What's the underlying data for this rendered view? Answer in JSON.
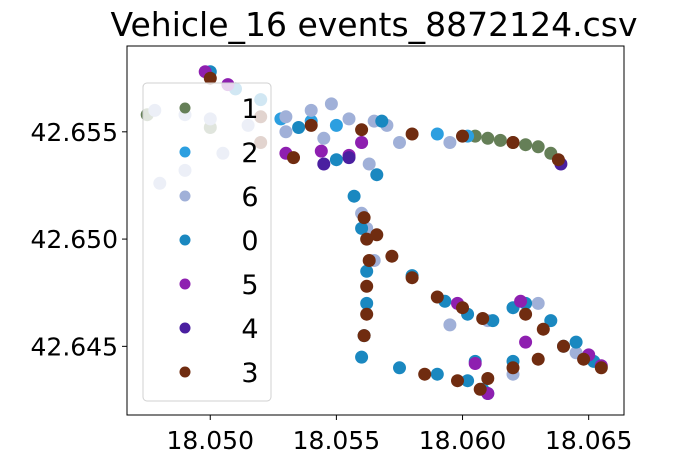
{
  "chart_data": {
    "type": "scatter",
    "title": "Vehicle_16 events_8872124.csv",
    "xlabel": "",
    "ylabel": "",
    "xlim": [
      18.0467,
      18.0664
    ],
    "ylim": [
      42.6418,
      42.659
    ],
    "x_ticks": [
      18.05,
      18.055,
      18.06,
      18.065
    ],
    "x_tick_labels": [
      "18.050",
      "18.055",
      "18.060",
      "18.065"
    ],
    "y_ticks": [
      42.645,
      42.65,
      42.655
    ],
    "y_tick_labels": [
      "42.645",
      "42.650",
      "42.655"
    ],
    "grid": false,
    "legend_position": "upper-left",
    "trajectory_color": "#e07bb8",
    "series": [
      {
        "name": "1",
        "color": "#657f57",
        "points": [
          [
            18.0605,
            42.6548
          ],
          [
            18.061,
            42.6547
          ],
          [
            18.0615,
            42.6546
          ],
          [
            18.062,
            42.6545
          ],
          [
            18.0625,
            42.6544
          ],
          [
            18.063,
            42.6543
          ],
          [
            18.0635,
            42.654
          ],
          [
            18.0475,
            42.6558
          ],
          [
            18.05,
            42.6552
          ]
        ]
      },
      {
        "name": "2",
        "color": "#2c9fe0",
        "points": [
          [
            18.0528,
            42.6556
          ],
          [
            18.054,
            42.6555
          ],
          [
            18.055,
            42.6553
          ],
          [
            18.059,
            42.6549
          ],
          [
            18.0602,
            42.6548
          ]
        ]
      },
      {
        "name": "6",
        "color": "#a0b0d8",
        "points": [
          [
            18.0478,
            42.656
          ],
          [
            18.049,
            42.6558
          ],
          [
            18.05,
            42.6556
          ],
          [
            18.0515,
            42.6553
          ],
          [
            18.053,
            42.655
          ],
          [
            18.0545,
            42.6547
          ],
          [
            18.056,
            42.6545
          ],
          [
            18.0575,
            42.6545
          ],
          [
            18.0595,
            42.6545
          ],
          [
            18.053,
            42.6557
          ],
          [
            18.054,
            42.656
          ],
          [
            18.0548,
            42.6563
          ],
          [
            18.0555,
            42.6556
          ],
          [
            18.0565,
            42.6555
          ],
          [
            18.057,
            42.6553
          ],
          [
            18.0563,
            42.6535
          ],
          [
            18.056,
            42.6512
          ],
          [
            18.0562,
            42.6505
          ],
          [
            18.0505,
            42.654
          ],
          [
            18.049,
            42.6532
          ],
          [
            18.048,
            42.6526
          ],
          [
            18.0565,
            42.649
          ],
          [
            18.0595,
            42.646
          ],
          [
            18.061,
            42.6462
          ],
          [
            18.063,
            42.647
          ],
          [
            18.0645,
            42.6447
          ],
          [
            18.062,
            42.6437
          ]
        ]
      },
      {
        "name": "0",
        "color": "#1a88c0",
        "points": [
          [
            18.05,
            42.6578
          ],
          [
            18.051,
            42.657
          ],
          [
            18.052,
            42.6565
          ],
          [
            18.0535,
            42.6552
          ],
          [
            18.055,
            42.6537
          ],
          [
            18.0557,
            42.652
          ],
          [
            18.056,
            42.6505
          ],
          [
            18.0562,
            42.6485
          ],
          [
            18.0562,
            42.647
          ],
          [
            18.0561,
            42.6455
          ],
          [
            18.056,
            42.6445
          ],
          [
            18.0575,
            42.644
          ],
          [
            18.059,
            42.6437
          ],
          [
            18.0602,
            42.6434
          ],
          [
            18.0608,
            42.643
          ],
          [
            18.061,
            42.6428
          ],
          [
            18.0605,
            42.6443
          ],
          [
            18.062,
            42.6443
          ],
          [
            18.064,
            42.645
          ],
          [
            18.0652,
            42.6443
          ],
          [
            18.058,
            42.6483
          ],
          [
            18.0593,
            42.6471
          ],
          [
            18.0602,
            42.6465
          ],
          [
            18.0612,
            42.6462
          ],
          [
            18.062,
            42.6468
          ],
          [
            18.0625,
            42.647
          ],
          [
            18.0635,
            42.6462
          ],
          [
            18.0645,
            42.6452
          ],
          [
            18.0568,
            42.6555
          ],
          [
            18.0566,
            42.653
          ]
        ]
      },
      {
        "name": "5",
        "color": "#8e1fb0",
        "points": [
          [
            18.0498,
            42.6578
          ],
          [
            18.0507,
            42.6572
          ],
          [
            18.0544,
            42.6541
          ],
          [
            18.0555,
            42.6539
          ],
          [
            18.056,
            42.6545
          ],
          [
            18.0598,
            42.647
          ],
          [
            18.0625,
            42.6452
          ],
          [
            18.065,
            42.6446
          ],
          [
            18.0655,
            42.6441
          ],
          [
            18.0605,
            42.6442
          ],
          [
            18.061,
            42.6428
          ],
          [
            18.0623,
            42.6471
          ],
          [
            18.053,
            42.654
          ]
        ]
      },
      {
        "name": "4",
        "color": "#4a1fa0",
        "points": [
          [
            18.0639,
            42.6535
          ],
          [
            18.0545,
            42.6535
          ],
          [
            18.0555,
            42.6538
          ]
        ]
      },
      {
        "name": "3",
        "color": "#702c10",
        "points": [
          [
            18.05,
            42.6575
          ],
          [
            18.052,
            42.6557
          ],
          [
            18.054,
            42.6553
          ],
          [
            18.056,
            42.6551
          ],
          [
            18.058,
            42.6549
          ],
          [
            18.06,
            42.6548
          ],
          [
            18.062,
            42.6545
          ],
          [
            18.0638,
            42.6537
          ],
          [
            18.0561,
            42.651
          ],
          [
            18.0562,
            42.65
          ],
          [
            18.0563,
            42.649
          ],
          [
            18.0562,
            42.6478
          ],
          [
            18.0562,
            42.6465
          ],
          [
            18.0561,
            42.6455
          ],
          [
            18.0566,
            42.6502
          ],
          [
            18.0572,
            42.6492
          ],
          [
            18.058,
            42.6482
          ],
          [
            18.059,
            42.6473
          ],
          [
            18.06,
            42.6468
          ],
          [
            18.0608,
            42.6463
          ],
          [
            18.0625,
            42.6465
          ],
          [
            18.0632,
            42.6458
          ],
          [
            18.064,
            42.645
          ],
          [
            18.0648,
            42.6444
          ],
          [
            18.0655,
            42.644
          ],
          [
            18.0585,
            42.6437
          ],
          [
            18.0598,
            42.6434
          ],
          [
            18.0607,
            42.643
          ],
          [
            18.061,
            42.6435
          ],
          [
            18.062,
            42.644
          ],
          [
            18.063,
            42.6444
          ],
          [
            18.052,
            42.6545
          ],
          [
            18.0533,
            42.6538
          ]
        ]
      }
    ]
  }
}
